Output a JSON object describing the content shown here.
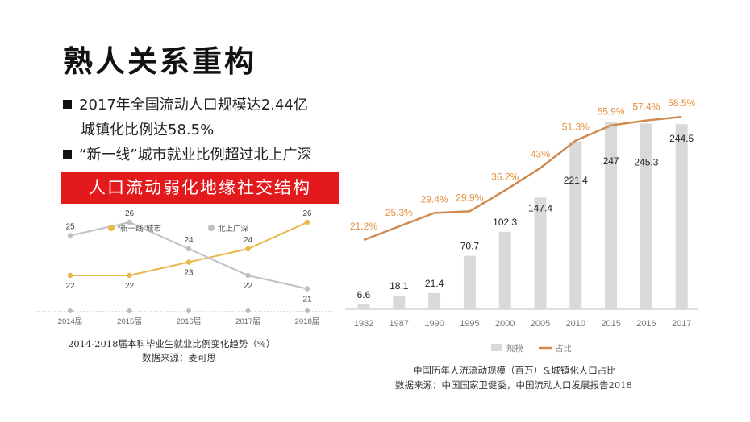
{
  "page": {
    "title": "熟人关系重构",
    "bullets": {
      "b1_line1": "2017年全国流动人口规模达2.44亿",
      "b1_line2": "城镇化比例达58.5%",
      "b2": "“新一线”城市就业比例超过北上广深"
    },
    "banner": "人口流动弱化地缘社交结构",
    "left_caption": {
      "line1": "2014-2018届本科毕业生就业比例变化趋势（%）",
      "line2": "数据来源：麦可思"
    },
    "right_caption": {
      "line1": "中国历年人流流动规模（百万）&城镇化人口占比",
      "line2": "数据来源：中国国家卫健委，中国流动人口发展报告2018"
    }
  },
  "colors": {
    "accent_red": "#e3191c",
    "new_tier": "#e8b84a",
    "bsgs": "#bfbfc7",
    "bars": "#d9d9d9",
    "ratio_line": "#d08a4e",
    "ratio_label": "#e3913f"
  },
  "chart_data": [
    {
      "type": "line",
      "categories": [
        "2014届",
        "2015届",
        "2016届",
        "2017届",
        "2018届"
      ],
      "series": [
        {
          "name": "“新一线”城市",
          "values": [
            22,
            22,
            23,
            24,
            26
          ]
        },
        {
          "name": "北上广深",
          "values": [
            25,
            26,
            24,
            22,
            21
          ]
        }
      ],
      "legend_position": "top-center",
      "grid": false
    },
    {
      "type": "bar",
      "categories": [
        "1982",
        "1987",
        "1990",
        "1995",
        "2000",
        "2005",
        "2010",
        "2015",
        "2016",
        "2017"
      ],
      "series": [
        {
          "name": "规模",
          "type": "bar",
          "values": [
            6.6,
            18.1,
            21.4,
            70.7,
            102.3,
            147.4,
            221.4,
            247,
            245.3,
            244.5
          ]
        },
        {
          "name": "占比",
          "type": "line",
          "values": [
            21.2,
            25.3,
            29.4,
            29.9,
            36.2,
            43,
            51.3,
            55.9,
            57.4,
            58.5
          ],
          "labels": [
            "21.2%",
            "25.3%",
            "29.4%",
            "29.9%",
            "36.2%",
            "43%",
            "51.3%",
            "55.9%",
            "57.4%",
            "58.5%"
          ]
        }
      ],
      "legend_position": "bottom-center",
      "grid": false
    }
  ]
}
